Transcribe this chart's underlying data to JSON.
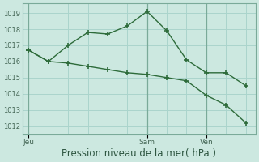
{
  "background_color": "#cce8e0",
  "plot_bg_color": "#cce8e0",
  "grid_color": "#aad4cc",
  "line_color": "#2d6b3a",
  "marker_color": "#2d6b3a",
  "line1_x": [
    0,
    1,
    2,
    3,
    4,
    5,
    6,
    7,
    8,
    9,
    10,
    11
  ],
  "line1_y": [
    1016.7,
    1016.0,
    1017.0,
    1017.8,
    1017.7,
    1018.2,
    1019.1,
    1017.9,
    1016.1,
    1015.3,
    1015.3,
    1014.5
  ],
  "line2_x": [
    0,
    1,
    2,
    3,
    4,
    5,
    6,
    7,
    8,
    9,
    10,
    11
  ],
  "line2_y": [
    1016.7,
    1016.0,
    1015.9,
    1015.7,
    1015.5,
    1015.3,
    1015.2,
    1015.0,
    1014.8,
    1013.9,
    1013.3,
    1012.2
  ],
  "jeu_x": 0,
  "sam_x": 6,
  "ven_x": 9,
  "xtick_positions": [
    0,
    6,
    9
  ],
  "xtick_labels": [
    "Jeu",
    "Sam",
    "Ven"
  ],
  "vline_positions": [
    6,
    9
  ],
  "ylim": [
    1011.5,
    1019.6
  ],
  "xlim": [
    -0.3,
    11.5
  ],
  "ytick_positions": [
    1012,
    1013,
    1014,
    1015,
    1016,
    1017,
    1018,
    1019
  ],
  "ytick_labels": [
    "1012",
    "1013",
    "1014",
    "1015",
    "1016",
    "1017",
    "1018",
    "1019"
  ],
  "xlabel": "Pression niveau de la mer( hPa )",
  "xlabel_fontsize": 8.5
}
